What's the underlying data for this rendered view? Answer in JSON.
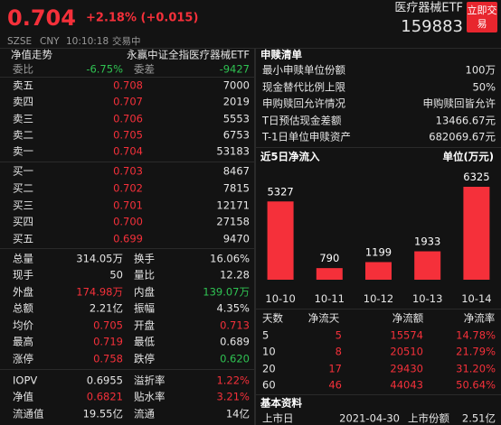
{
  "header": {
    "price": "0.704",
    "change": "+2.18% (+0.015)",
    "name": "医疗器械ETF",
    "code": "159883",
    "trade_button": "立即交易",
    "meta": [
      "SZSE",
      "CNY",
      "10:10:18",
      "交易中"
    ]
  },
  "left": {
    "title": "净值走势",
    "fund_name": "永赢中证全指医疗器械ETF",
    "ratio_row": [
      "委比",
      "-6.75%",
      "委差",
      "-9427"
    ],
    "order_book": [
      [
        "卖五",
        "0.708",
        "7000"
      ],
      [
        "卖四",
        "0.707",
        "2019"
      ],
      [
        "卖三",
        "0.706",
        "5553"
      ],
      [
        "卖二",
        "0.705",
        "6753"
      ],
      [
        "卖一",
        "0.704",
        "53183"
      ],
      [
        "买一",
        "0.703",
        "8467"
      ],
      [
        "买二",
        "0.702",
        "7815"
      ],
      [
        "买三",
        "0.701",
        "12171"
      ],
      [
        "买四",
        "0.700",
        "27158"
      ],
      [
        "买五",
        "0.699",
        "9470"
      ]
    ],
    "stats": [
      [
        "总量",
        "314.05万",
        "换手",
        "16.06%"
      ],
      [
        "现手",
        "50",
        "量比",
        "12.28"
      ],
      [
        "外盘",
        "174.98万",
        "内盘",
        "139.07万"
      ],
      [
        "总额",
        "2.21亿",
        "振幅",
        "4.35%"
      ],
      [
        "均价",
        "0.705",
        "开盘",
        "0.713"
      ],
      [
        "最高",
        "0.719",
        "最低",
        "0.689"
      ],
      [
        "涨停",
        "0.758",
        "跌停",
        "0.620"
      ],
      [
        "IOPV",
        "0.6955",
        "溢折率",
        "1.22%"
      ],
      [
        "净值",
        "0.6821",
        "贴水率",
        "3.21%"
      ],
      [
        "流通值",
        "19.55亿",
        "流通",
        "14亿"
      ]
    ]
  },
  "redemption": {
    "title": "申赎清单",
    "rows": [
      [
        "最小申赎单位份额",
        "100万"
      ],
      [
        "现金替代比例上限",
        "50%"
      ],
      [
        "申购赎回允许情况",
        "申购赎回皆允许"
      ],
      [
        "T日预估现金差额",
        "13466.67元"
      ],
      [
        "T-1日单位申赎资产",
        "682069.67元"
      ]
    ]
  },
  "chart_data": {
    "type": "bar",
    "title": "近5日净流入",
    "unit_label": "单位(万元)",
    "categories": [
      "10-10",
      "10-11",
      "10-12",
      "10-13",
      "10-14"
    ],
    "values": [
      5327,
      790,
      1199,
      1933,
      6325
    ],
    "color": "#f5303a"
  },
  "inflow_table": {
    "columns": [
      "天数",
      "净流天",
      "净流额",
      "净流率"
    ],
    "rows": [
      [
        "5",
        "5",
        "15574",
        "14.78%"
      ],
      [
        "10",
        "8",
        "20510",
        "21.79%"
      ],
      [
        "20",
        "17",
        "29430",
        "31.20%"
      ],
      [
        "60",
        "46",
        "44043",
        "50.64%"
      ]
    ]
  },
  "basics": {
    "title": "基本资料",
    "row": [
      "上市日",
      "2021-04-30",
      "上市份额",
      "2.51亿"
    ]
  }
}
